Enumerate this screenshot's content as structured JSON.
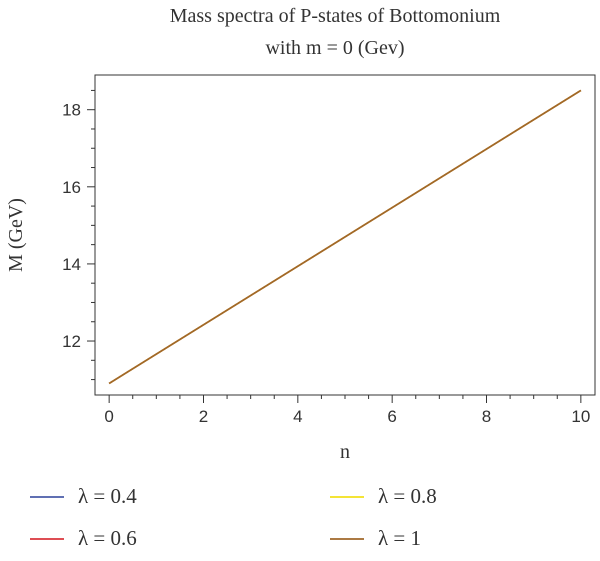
{
  "chart_data": {
    "type": "line",
    "title": "Mass spectra of P-states of Bottomonium",
    "subtitle": "with m = 0 (Gev)",
    "xlabel": "n",
    "ylabel": "M (GeV)",
    "xlim": [
      -0.3,
      10.3
    ],
    "ylim": [
      10.6,
      18.9
    ],
    "xticks": [
      0,
      2,
      4,
      6,
      8,
      10
    ],
    "yticks": [
      12,
      14,
      16,
      18
    ],
    "legend_position": "bottom",
    "series": [
      {
        "name": "λ = 0.4",
        "color": "#4a5ba8",
        "x": [
          0,
          10
        ],
        "y": [
          10.9,
          18.5
        ]
      },
      {
        "name": "λ = 0.6",
        "color": "#d9343b",
        "x": [
          0,
          10
        ],
        "y": [
          10.9,
          18.5
        ]
      },
      {
        "name": "λ = 0.8",
        "color": "#f2e01a",
        "x": [
          0,
          10
        ],
        "y": [
          10.9,
          18.5
        ]
      },
      {
        "name": "λ = 1",
        "color": "#a0672a",
        "x": [
          0,
          10
        ],
        "y": [
          10.9,
          18.5
        ]
      }
    ]
  }
}
